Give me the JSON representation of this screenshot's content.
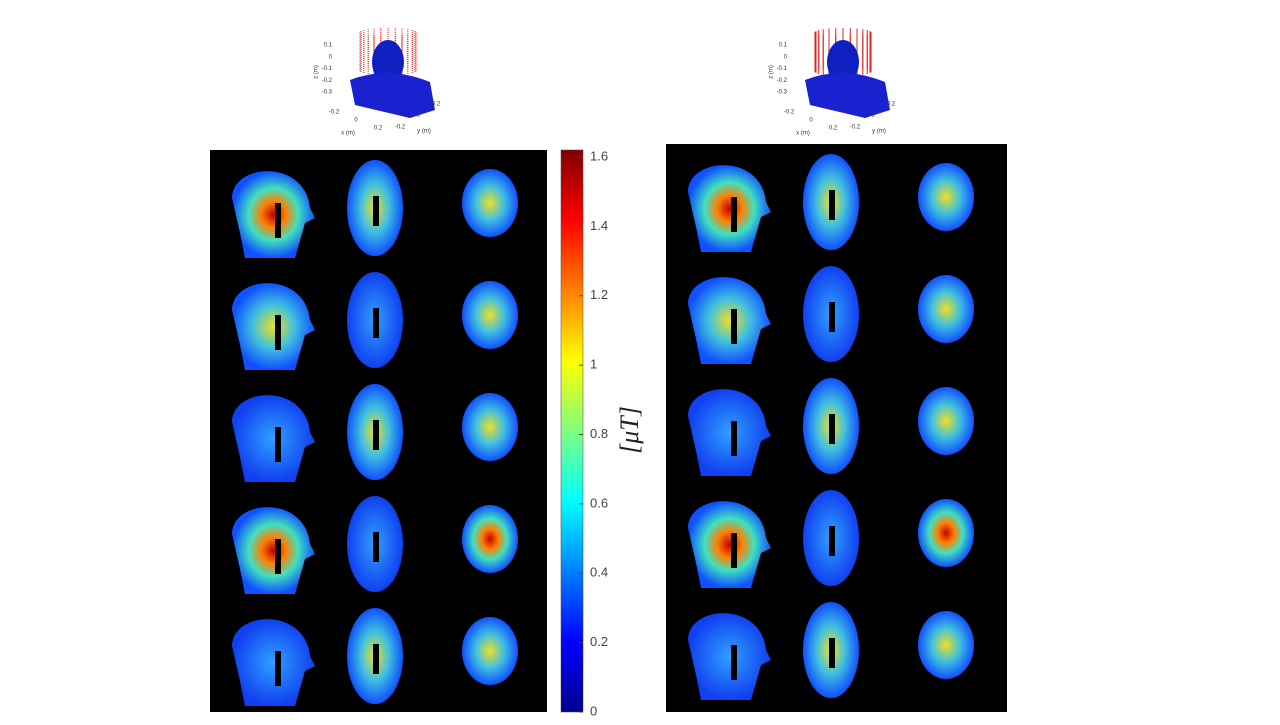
{
  "colorbar": {
    "label": "[μT]",
    "lim": [
      0,
      1.6
    ],
    "ticks": [
      0,
      0.2,
      0.4,
      0.6,
      0.8,
      1,
      1.2,
      1.4,
      1.6
    ]
  },
  "insets": [
    {
      "xlabel": "x (m)",
      "ylabel": "y (m)",
      "zlabel": "z (m)",
      "xticks": [
        -0.2,
        0,
        0.2
      ],
      "yticks": [
        -0.2,
        0,
        0.2
      ],
      "zticks": [
        0.1,
        0,
        -0.1,
        -0.2,
        -0.3
      ]
    },
    {
      "xlabel": "x (m)",
      "ylabel": "y (m)",
      "zlabel": "z (m)",
      "xticks": [
        -0.2,
        0,
        0.2
      ],
      "yticks": [
        -0.2,
        0,
        0.2
      ],
      "zticks": [
        0.1,
        0,
        -0.1,
        -0.2,
        -0.3
      ]
    }
  ]
}
